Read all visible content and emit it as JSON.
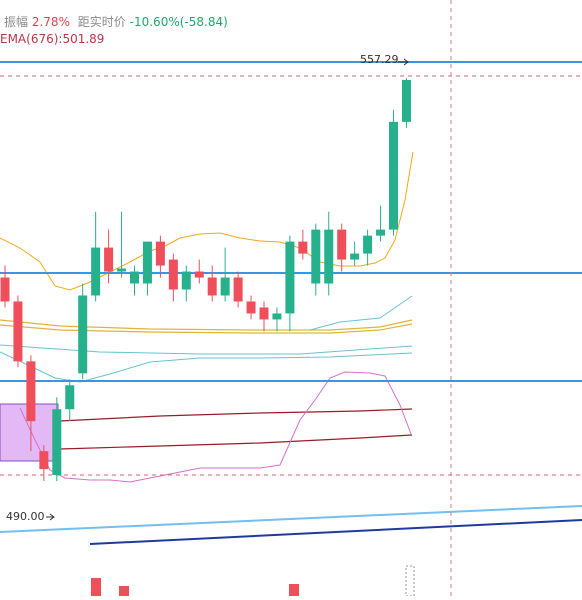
{
  "header": {
    "amplitude_label": "振幅",
    "amplitude_value": "2.78%",
    "distance_label": "距实时价",
    "distance_value": "-10.60%(-58.84)",
    "ema_text": "EMA(676):501.89"
  },
  "price_labels": {
    "high": "557.29",
    "low": "490.00"
  },
  "colors": {
    "up": "#26b08b",
    "down": "#ef4e5b",
    "blue_line": "#3a95e4",
    "dashed_red": "#d66570",
    "cursor_dashed": "#d07e88",
    "orange": "#f2a91a",
    "gold": "#e0b33a",
    "teal": "#67c3cf",
    "dark_red": "#9a1c26",
    "magenta": "#d76fca",
    "purple_box": "#d8a2f2",
    "light_blue_trend": "#72bff1",
    "dark_blue_trend": "#1f3a9e"
  },
  "chart_data": {
    "type": "candlestick",
    "y_range": [
      484,
      560
    ],
    "candles": [
      {
        "o": 524,
        "c": 520,
        "h": 526,
        "l": 519
      },
      {
        "o": 520,
        "c": 510,
        "h": 521,
        "l": 509
      },
      {
        "o": 510,
        "c": 500,
        "h": 511,
        "l": 495
      },
      {
        "o": 495,
        "c": 492,
        "h": 496,
        "l": 490
      },
      {
        "o": 491,
        "c": 502,
        "h": 504,
        "l": 490
      },
      {
        "o": 502,
        "c": 506,
        "h": 507,
        "l": 500
      },
      {
        "o": 508,
        "c": 521,
        "h": 523,
        "l": 507
      },
      {
        "o": 521,
        "c": 529,
        "h": 535,
        "l": 520
      },
      {
        "o": 529,
        "c": 525,
        "h": 532,
        "l": 523
      },
      {
        "o": 525,
        "c": 525.5,
        "h": 535,
        "l": 524
      },
      {
        "o": 523,
        "c": 525,
        "h": 526,
        "l": 521
      },
      {
        "o": 523,
        "c": 530,
        "h": 530,
        "l": 521
      },
      {
        "o": 530,
        "c": 526,
        "h": 531,
        "l": 524
      },
      {
        "o": 527,
        "c": 522,
        "h": 528,
        "l": 520
      },
      {
        "o": 522,
        "c": 525,
        "h": 526,
        "l": 520
      },
      {
        "o": 525,
        "c": 524,
        "h": 527,
        "l": 523
      },
      {
        "o": 524,
        "c": 521,
        "h": 526,
        "l": 520
      },
      {
        "o": 521,
        "c": 524,
        "h": 529,
        "l": 520
      },
      {
        "o": 524,
        "c": 520,
        "h": 525,
        "l": 519
      },
      {
        "o": 520,
        "c": 518,
        "h": 521,
        "l": 517
      },
      {
        "o": 519,
        "c": 517,
        "h": 520,
        "l": 515
      },
      {
        "o": 517,
        "c": 518,
        "h": 519,
        "l": 515
      },
      {
        "o": 518,
        "c": 530,
        "h": 531,
        "l": 515
      },
      {
        "o": 530,
        "c": 528,
        "h": 532,
        "l": 527
      },
      {
        "o": 523,
        "c": 532,
        "h": 533,
        "l": 521
      },
      {
        "o": 523,
        "c": 532,
        "h": 535,
        "l": 521
      },
      {
        "o": 532,
        "c": 527,
        "h": 533,
        "l": 525
      },
      {
        "o": 527,
        "c": 528,
        "h": 530,
        "l": 526
      },
      {
        "o": 528,
        "c": 531,
        "h": 532,
        "l": 526
      },
      {
        "o": 531,
        "c": 532,
        "h": 536,
        "l": 530
      },
      {
        "o": 532,
        "c": 550,
        "h": 552,
        "l": 531
      },
      {
        "o": 550,
        "c": 557,
        "h": 557.29,
        "l": 549
      }
    ]
  }
}
